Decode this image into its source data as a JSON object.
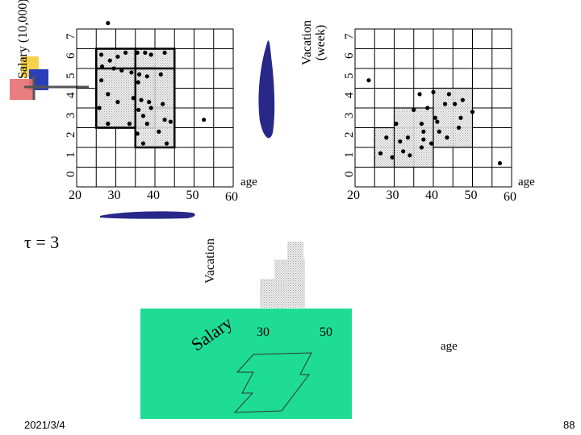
{
  "footer": {
    "date": "2021/3/4",
    "page": "88"
  },
  "tau_label": "τ = 3",
  "colors": {
    "teal": "#1edc96",
    "navy": "#282888",
    "dot": "#000000",
    "shade": "#d8d8d8",
    "deco_yellow": "#f5d24a",
    "deco_blue": "#2a3fb8",
    "deco_red": "#e03030"
  },
  "chart_data": [
    {
      "type": "scatter",
      "name_key": "salary",
      "ylabel": "Salary (10,000)",
      "xlabel": "age",
      "xticks": [
        "20",
        "30",
        "40",
        "50",
        "60"
      ],
      "yticks": [
        "0",
        "1",
        "2",
        "3",
        "4",
        "5",
        "6",
        "7"
      ],
      "xlim": [
        20,
        60
      ],
      "ylim": [
        0,
        8
      ],
      "dense_regions": [
        {
          "x": [
            25,
            35
          ],
          "y": [
            3,
            7
          ]
        },
        {
          "x": [
            35,
            45
          ],
          "y": [
            4,
            7
          ]
        },
        {
          "x": [
            25,
            40
          ],
          "y": [
            3,
            6
          ]
        },
        {
          "x": [
            35,
            45
          ],
          "y": [
            2,
            6
          ]
        }
      ],
      "points": [
        [
          28,
          8.3
        ],
        [
          26.3,
          6.7
        ],
        [
          28.5,
          6.4
        ],
        [
          30.5,
          6.6
        ],
        [
          32.5,
          6.8
        ],
        [
          35.5,
          6.8
        ],
        [
          37.5,
          6.8
        ],
        [
          39,
          6.7
        ],
        [
          42.5,
          6.8
        ],
        [
          26.5,
          6.1
        ],
        [
          29.5,
          6.0
        ],
        [
          31.5,
          5.9
        ],
        [
          34,
          5.8
        ],
        [
          36,
          5.7
        ],
        [
          38,
          5.6
        ],
        [
          26.3,
          5.4
        ],
        [
          35.7,
          5.3
        ],
        [
          41.5,
          5.7
        ],
        [
          28,
          4.7
        ],
        [
          30.5,
          4.3
        ],
        [
          34.5,
          4.5
        ],
        [
          36.5,
          4.4
        ],
        [
          38.5,
          4.3
        ],
        [
          42,
          4.2
        ],
        [
          25.8,
          4.0
        ],
        [
          35.8,
          3.9
        ],
        [
          39,
          4.0
        ],
        [
          37,
          3.6
        ],
        [
          33.5,
          3.2
        ],
        [
          38,
          3.2
        ],
        [
          28,
          3.2
        ],
        [
          44,
          3.3
        ],
        [
          42.5,
          3.4
        ],
        [
          52.5,
          3.4
        ],
        [
          35.5,
          2.7
        ],
        [
          41,
          2.8
        ],
        [
          37,
          2.2
        ],
        [
          43,
          2.2
        ]
      ]
    },
    {
      "type": "scatter",
      "name_key": "vacation",
      "ylabel": "Vacation (week)",
      "xlabel": "age",
      "xticks": [
        "20",
        "30",
        "40",
        "50",
        "60"
      ],
      "yticks": [
        "0",
        "1",
        "2",
        "3",
        "4",
        "5",
        "6",
        "7"
      ],
      "xlim": [
        20,
        60
      ],
      "ylim": [
        0,
        8
      ],
      "dense_regions": [
        {
          "x": [
            25,
            35
          ],
          "y": [
            1,
            3
          ]
        },
        {
          "x": [
            30,
            40
          ],
          "y": [
            1,
            4
          ]
        },
        {
          "x": [
            40,
            50
          ],
          "y": [
            2,
            5
          ]
        }
      ],
      "points": [
        [
          23.5,
          5.4
        ],
        [
          26.5,
          1.7
        ],
        [
          28,
          2.5
        ],
        [
          29.5,
          1.5
        ],
        [
          31.5,
          2.3
        ],
        [
          32.3,
          1.8
        ],
        [
          34,
          1.6
        ],
        [
          30.5,
          3.2
        ],
        [
          33.5,
          2.5
        ],
        [
          37,
          2.0
        ],
        [
          37.5,
          2.4
        ],
        [
          37.5,
          2.8
        ],
        [
          39.5,
          2.2
        ],
        [
          37,
          3.2
        ],
        [
          41.5,
          2.8
        ],
        [
          43.5,
          2.5
        ],
        [
          35,
          3.9
        ],
        [
          36.5,
          4.7
        ],
        [
          38.5,
          4.0
        ],
        [
          40.5,
          3.5
        ],
        [
          41,
          3.3
        ],
        [
          43,
          4.2
        ],
        [
          44,
          4.7
        ],
        [
          45.5,
          4.2
        ],
        [
          46.5,
          3.0
        ],
        [
          47,
          3.5
        ],
        [
          47.5,
          4.4
        ],
        [
          50,
          3.8
        ],
        [
          40,
          4.8
        ],
        [
          57,
          1.2
        ]
      ]
    }
  ],
  "plot3d": {
    "labels": {
      "vacation": "Vacation",
      "salary": "Salary",
      "age": "age",
      "tick30": "30",
      "tick50": "50"
    }
  }
}
